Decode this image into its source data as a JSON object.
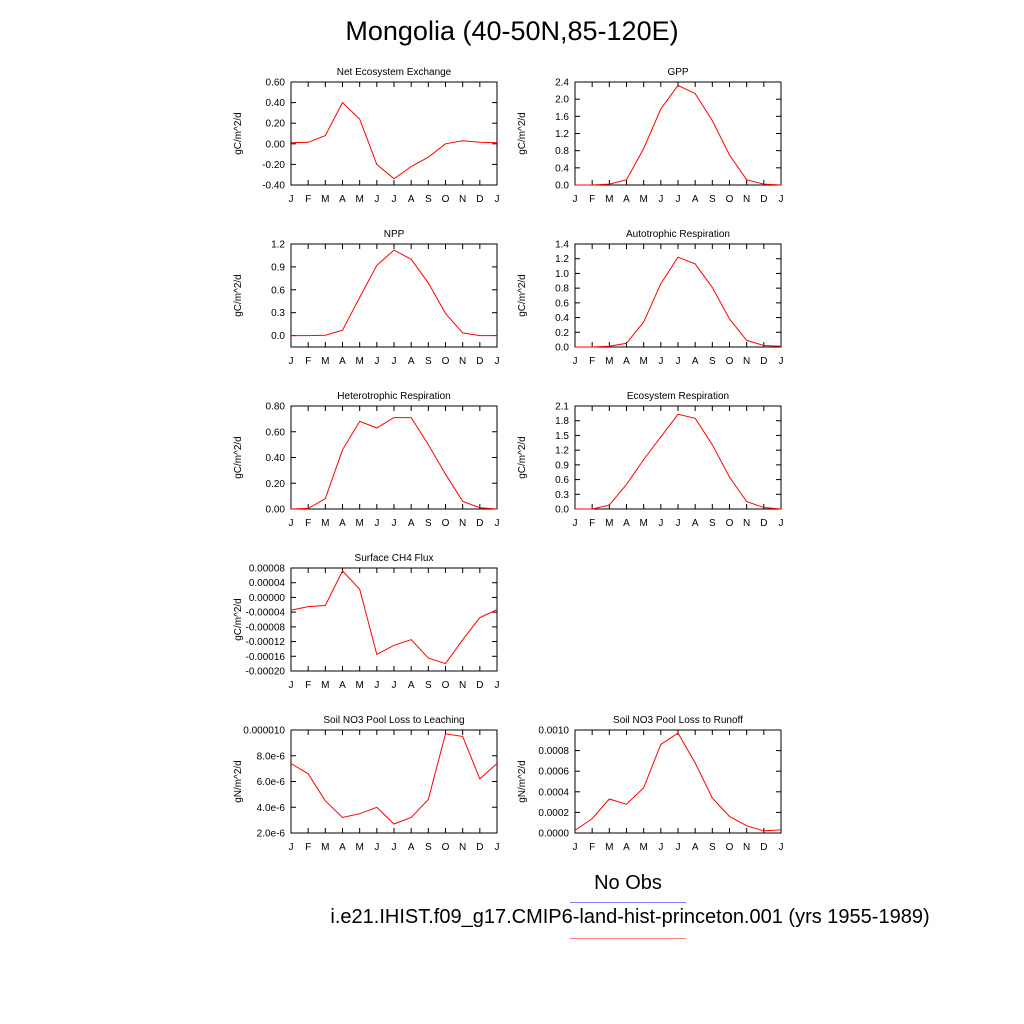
{
  "title": "Mongolia (40-50N,85-120E)",
  "colors": {
    "model": "#ff0000",
    "obs": "#0000ff",
    "axis": "#000000"
  },
  "legend": {
    "obs_label": "No Obs",
    "model_label": "i.e21.IHIST.f09_g17.CMIP6-land-hist-princeton.001 (yrs 1955-1989)"
  },
  "chart_data": [
    {
      "type": "line",
      "title": "Net Ecosystem Exchange",
      "ylabel": "gC/m^2/d",
      "categories": [
        "J",
        "F",
        "M",
        "A",
        "M",
        "J",
        "J",
        "A",
        "S",
        "O",
        "N",
        "D",
        "J"
      ],
      "ylim": [
        -0.4,
        0.6
      ],
      "yticks": [
        "-0.40",
        "-0.20",
        "0.00",
        "0.20",
        "0.40",
        "0.60"
      ],
      "values": [
        0.01,
        0.015,
        0.08,
        0.4,
        0.24,
        -0.2,
        -0.34,
        -0.22,
        -0.13,
        0.0,
        0.03,
        0.015,
        0.01
      ]
    },
    {
      "type": "line",
      "title": "GPP",
      "ylabel": "gC/m^2/d",
      "categories": [
        "J",
        "F",
        "M",
        "A",
        "M",
        "J",
        "J",
        "A",
        "S",
        "O",
        "N",
        "D",
        "J"
      ],
      "ylim": [
        0,
        2.4
      ],
      "yticks": [
        "0.0",
        "0.4",
        "0.8",
        "1.2",
        "1.6",
        "2.0",
        "2.4"
      ],
      "values": [
        0.0,
        0.0,
        0.02,
        0.12,
        0.85,
        1.77,
        2.32,
        2.13,
        1.5,
        0.7,
        0.12,
        0.02,
        0.0
      ]
    },
    {
      "type": "line",
      "title": "NPP",
      "ylabel": "gC/m^2/d",
      "categories": [
        "J",
        "F",
        "M",
        "A",
        "M",
        "J",
        "J",
        "A",
        "S",
        "O",
        "N",
        "D",
        "J"
      ],
      "ylim": [
        -0.15,
        1.2
      ],
      "yticks": [
        "0.0",
        "0.3",
        "0.6",
        "0.9",
        "1.2"
      ],
      "values": [
        0.0,
        0.0,
        0.005,
        0.07,
        0.5,
        0.92,
        1.12,
        1.0,
        0.69,
        0.29,
        0.035,
        0.0,
        0.0
      ]
    },
    {
      "type": "line",
      "title": "Autotrophic Respiration",
      "ylabel": "gC/m^2/d",
      "categories": [
        "J",
        "F",
        "M",
        "A",
        "M",
        "J",
        "J",
        "A",
        "S",
        "O",
        "N",
        "D",
        "J"
      ],
      "ylim": [
        0,
        1.4
      ],
      "yticks": [
        "0.0",
        "0.2",
        "0.4",
        "0.6",
        "0.8",
        "1.0",
        "1.2",
        "1.4"
      ],
      "values": [
        0.0,
        0.0,
        0.01,
        0.05,
        0.34,
        0.86,
        1.22,
        1.13,
        0.81,
        0.38,
        0.09,
        0.02,
        0.01
      ]
    },
    {
      "type": "line",
      "title": "Heterotrophic Respiration",
      "ylabel": "gC/m^2/d",
      "categories": [
        "J",
        "F",
        "M",
        "A",
        "M",
        "J",
        "J",
        "A",
        "S",
        "O",
        "N",
        "D",
        "J"
      ],
      "ylim": [
        0,
        0.8
      ],
      "yticks": [
        "0.00",
        "0.20",
        "0.40",
        "0.60",
        "0.80"
      ],
      "values": [
        0.0,
        0.005,
        0.08,
        0.46,
        0.68,
        0.63,
        0.71,
        0.71,
        0.5,
        0.27,
        0.06,
        0.01,
        0.0
      ]
    },
    {
      "type": "line",
      "title": "Ecosystem Respiration",
      "ylabel": "gC/m^2/d",
      "categories": [
        "J",
        "F",
        "M",
        "A",
        "M",
        "J",
        "J",
        "A",
        "S",
        "O",
        "N",
        "D",
        "J"
      ],
      "ylim": [
        0,
        2.1
      ],
      "yticks": [
        "0.0",
        "0.3",
        "0.6",
        "0.9",
        "1.2",
        "1.5",
        "1.8",
        "2.1"
      ],
      "values": [
        0.0,
        0.0,
        0.08,
        0.5,
        1.01,
        1.47,
        1.93,
        1.85,
        1.31,
        0.65,
        0.15,
        0.03,
        0.0
      ]
    },
    {
      "type": "line",
      "title": "Surface CH4 Flux",
      "ylabel": "gC/m^2/d",
      "categories": [
        "J",
        "F",
        "M",
        "A",
        "M",
        "J",
        "J",
        "A",
        "S",
        "O",
        "N",
        "D",
        "J"
      ],
      "ylim": [
        -0.0002,
        8e-05
      ],
      "yticks": [
        "-0.00020",
        "-0.00016",
        "-0.00012",
        "-0.00008",
        "-0.00004",
        "0.00000",
        "0.00004",
        "0.00008"
      ],
      "values": [
        -3.5e-05,
        -2.5e-05,
        -2.2e-05,
        7.2e-05,
        2.2e-05,
        -0.000155,
        -0.00013,
        -0.000115,
        -0.000165,
        -0.00018,
        -0.000115,
        -5.5e-05,
        -3.3e-05
      ]
    },
    {
      "type": "line",
      "title": "Soil NO3 Pool Loss to Leaching",
      "ylabel": "gN/m^2/d",
      "categories": [
        "J",
        "F",
        "M",
        "A",
        "M",
        "J",
        "J",
        "A",
        "S",
        "O",
        "N",
        "D",
        "J"
      ],
      "ylim": [
        2e-06,
        1e-05
      ],
      "yticks": [
        "2.0e-6",
        "4.0e-6",
        "6.0e-6",
        "8.0e-6",
        "0.000010"
      ],
      "values": [
        7.4e-06,
        6.6e-06,
        4.5e-06,
        3.2e-06,
        3.5e-06,
        4e-06,
        2.7e-06,
        3.2e-06,
        4.6e-06,
        9.7e-06,
        9.5e-06,
        6.2e-06,
        7.4e-06
      ]
    },
    {
      "type": "line",
      "title": "Soil NO3 Pool Loss to Runoff",
      "ylabel": "gN/m^2/d",
      "categories": [
        "J",
        "F",
        "M",
        "A",
        "M",
        "J",
        "J",
        "A",
        "S",
        "O",
        "N",
        "D",
        "J"
      ],
      "ylim": [
        0,
        0.001
      ],
      "yticks": [
        "0.0000",
        "0.0002",
        "0.0004",
        "0.0006",
        "0.0008",
        "0.0010"
      ],
      "values": [
        2.5e-05,
        0.00014,
        0.00033,
        0.00028,
        0.00044,
        0.00086,
        0.00097,
        0.00068,
        0.00034,
        0.00016,
        7e-05,
        2e-05,
        3e-05
      ]
    }
  ]
}
